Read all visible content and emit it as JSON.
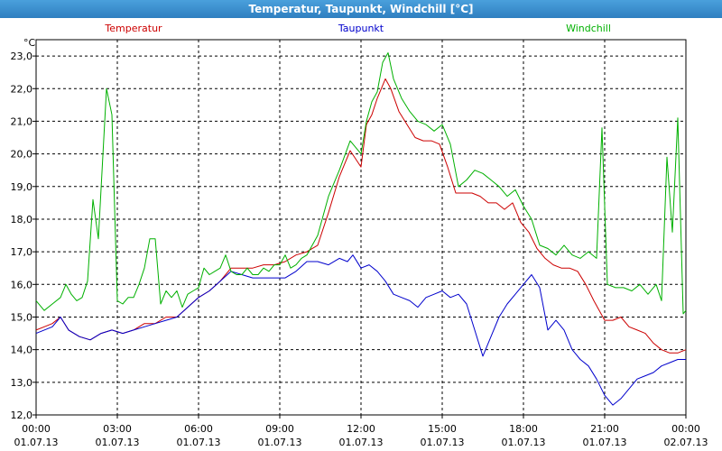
{
  "title": "Temperatur, Taupunkt, Windchill [°C]",
  "chart_data": {
    "type": "line",
    "title": "Temperatur, Taupunkt, Windchill [°C]",
    "y_unit": "°C",
    "ylim": [
      12.0,
      23.5
    ],
    "y_ticks": [
      "12,0",
      "13,0",
      "14,0",
      "15,0",
      "16,0",
      "17,0",
      "18,0",
      "19,0",
      "20,0",
      "21,0",
      "22,0",
      "23,0"
    ],
    "xlim": [
      0,
      24
    ],
    "x_ticks": [
      {
        "time": "00:00",
        "date": "01.07.13"
      },
      {
        "time": "03:00",
        "date": "01.07.13"
      },
      {
        "time": "06:00",
        "date": "01.07.13"
      },
      {
        "time": "09:00",
        "date": "01.07.13"
      },
      {
        "time": "12:00",
        "date": "01.07.13"
      },
      {
        "time": "15:00",
        "date": "01.07.13"
      },
      {
        "time": "18:00",
        "date": "01.07.13"
      },
      {
        "time": "21:00",
        "date": "01.07.13"
      },
      {
        "time": "00:00",
        "date": "02.07.13"
      }
    ],
    "grid": true,
    "legend_position": "top",
    "series": [
      {
        "name": "Temperatur",
        "color": "#cc0000",
        "points": [
          [
            0,
            14.6
          ],
          [
            0.3,
            14.7
          ],
          [
            0.6,
            14.8
          ],
          [
            0.9,
            15.0
          ],
          [
            1.2,
            14.6
          ],
          [
            1.6,
            14.4
          ],
          [
            2.0,
            14.3
          ],
          [
            2.4,
            14.5
          ],
          [
            2.8,
            14.6
          ],
          [
            3.2,
            14.5
          ],
          [
            3.6,
            14.6
          ],
          [
            4.0,
            14.8
          ],
          [
            4.4,
            14.8
          ],
          [
            4.8,
            15.0
          ],
          [
            5.2,
            15.0
          ],
          [
            5.6,
            15.3
          ],
          [
            6.0,
            15.6
          ],
          [
            6.4,
            15.8
          ],
          [
            6.8,
            16.1
          ],
          [
            7.2,
            16.5
          ],
          [
            7.6,
            16.5
          ],
          [
            8.0,
            16.5
          ],
          [
            8.4,
            16.6
          ],
          [
            8.8,
            16.6
          ],
          [
            9.2,
            16.7
          ],
          [
            9.6,
            16.9
          ],
          [
            10.0,
            17.0
          ],
          [
            10.4,
            17.2
          ],
          [
            10.8,
            18.2
          ],
          [
            11.2,
            19.3
          ],
          [
            11.6,
            20.1
          ],
          [
            12.0,
            19.6
          ],
          [
            12.2,
            20.9
          ],
          [
            12.4,
            21.2
          ],
          [
            12.6,
            21.7
          ],
          [
            12.9,
            22.3
          ],
          [
            13.1,
            22.0
          ],
          [
            13.4,
            21.3
          ],
          [
            13.7,
            20.9
          ],
          [
            14.0,
            20.5
          ],
          [
            14.3,
            20.4
          ],
          [
            14.6,
            20.4
          ],
          [
            14.9,
            20.3
          ],
          [
            15.2,
            19.6
          ],
          [
            15.5,
            18.8
          ],
          [
            15.8,
            18.8
          ],
          [
            16.1,
            18.8
          ],
          [
            16.4,
            18.7
          ],
          [
            16.7,
            18.5
          ],
          [
            17.0,
            18.5
          ],
          [
            17.3,
            18.3
          ],
          [
            17.6,
            18.5
          ],
          [
            17.9,
            17.9
          ],
          [
            18.2,
            17.6
          ],
          [
            18.5,
            17.1
          ],
          [
            18.8,
            16.8
          ],
          [
            19.1,
            16.6
          ],
          [
            19.4,
            16.5
          ],
          [
            19.7,
            16.5
          ],
          [
            20.0,
            16.4
          ],
          [
            20.3,
            16.0
          ],
          [
            20.6,
            15.5
          ],
          [
            21.0,
            14.9
          ],
          [
            21.3,
            14.9
          ],
          [
            21.6,
            15.0
          ],
          [
            21.9,
            14.7
          ],
          [
            22.2,
            14.6
          ],
          [
            22.5,
            14.5
          ],
          [
            22.8,
            14.2
          ],
          [
            23.1,
            14.0
          ],
          [
            23.4,
            13.9
          ],
          [
            23.7,
            13.9
          ],
          [
            24.0,
            14.0
          ]
        ]
      },
      {
        "name": "Taupunkt",
        "color": "#0000cc",
        "points": [
          [
            0,
            14.5
          ],
          [
            0.3,
            14.6
          ],
          [
            0.6,
            14.7
          ],
          [
            0.9,
            15.0
          ],
          [
            1.2,
            14.6
          ],
          [
            1.6,
            14.4
          ],
          [
            2.0,
            14.3
          ],
          [
            2.4,
            14.5
          ],
          [
            2.8,
            14.6
          ],
          [
            3.2,
            14.5
          ],
          [
            3.6,
            14.6
          ],
          [
            4.0,
            14.7
          ],
          [
            4.4,
            14.8
          ],
          [
            4.8,
            14.9
          ],
          [
            5.2,
            15.0
          ],
          [
            5.6,
            15.3
          ],
          [
            6.0,
            15.6
          ],
          [
            6.4,
            15.8
          ],
          [
            6.8,
            16.1
          ],
          [
            7.2,
            16.4
          ],
          [
            7.6,
            16.3
          ],
          [
            8.0,
            16.2
          ],
          [
            8.4,
            16.2
          ],
          [
            8.8,
            16.2
          ],
          [
            9.2,
            16.2
          ],
          [
            9.6,
            16.4
          ],
          [
            10.0,
            16.7
          ],
          [
            10.4,
            16.7
          ],
          [
            10.8,
            16.6
          ],
          [
            11.2,
            16.8
          ],
          [
            11.5,
            16.7
          ],
          [
            11.7,
            16.9
          ],
          [
            12.0,
            16.5
          ],
          [
            12.3,
            16.6
          ],
          [
            12.6,
            16.4
          ],
          [
            12.9,
            16.1
          ],
          [
            13.2,
            15.7
          ],
          [
            13.5,
            15.6
          ],
          [
            13.8,
            15.5
          ],
          [
            14.1,
            15.3
          ],
          [
            14.4,
            15.6
          ],
          [
            14.7,
            15.7
          ],
          [
            15.0,
            15.8
          ],
          [
            15.3,
            15.6
          ],
          [
            15.6,
            15.7
          ],
          [
            15.9,
            15.4
          ],
          [
            16.2,
            14.6
          ],
          [
            16.5,
            13.8
          ],
          [
            16.8,
            14.4
          ],
          [
            17.1,
            15.0
          ],
          [
            17.4,
            15.4
          ],
          [
            17.7,
            15.7
          ],
          [
            18.0,
            16.0
          ],
          [
            18.3,
            16.3
          ],
          [
            18.6,
            15.9
          ],
          [
            18.9,
            14.6
          ],
          [
            19.2,
            14.9
          ],
          [
            19.5,
            14.6
          ],
          [
            19.8,
            14.0
          ],
          [
            20.1,
            13.7
          ],
          [
            20.4,
            13.5
          ],
          [
            20.7,
            13.1
          ],
          [
            21.0,
            12.6
          ],
          [
            21.3,
            12.3
          ],
          [
            21.6,
            12.5
          ],
          [
            21.9,
            12.8
          ],
          [
            22.2,
            13.1
          ],
          [
            22.5,
            13.2
          ],
          [
            22.8,
            13.3
          ],
          [
            23.1,
            13.5
          ],
          [
            23.4,
            13.6
          ],
          [
            23.7,
            13.7
          ],
          [
            24.0,
            13.7
          ]
        ]
      },
      {
        "name": "Windchill",
        "color": "#00b000",
        "points": [
          [
            0,
            15.5
          ],
          [
            0.3,
            15.2
          ],
          [
            0.6,
            15.4
          ],
          [
            0.9,
            15.6
          ],
          [
            1.1,
            16.0
          ],
          [
            1.3,
            15.7
          ],
          [
            1.5,
            15.5
          ],
          [
            1.7,
            15.6
          ],
          [
            1.9,
            16.1
          ],
          [
            2.1,
            18.6
          ],
          [
            2.3,
            17.4
          ],
          [
            2.6,
            22.0
          ],
          [
            2.8,
            21.2
          ],
          [
            3.0,
            15.5
          ],
          [
            3.2,
            15.4
          ],
          [
            3.4,
            15.6
          ],
          [
            3.6,
            15.6
          ],
          [
            3.8,
            16.0
          ],
          [
            4.0,
            16.5
          ],
          [
            4.2,
            17.4
          ],
          [
            4.4,
            17.4
          ],
          [
            4.6,
            15.4
          ],
          [
            4.8,
            15.8
          ],
          [
            5.0,
            15.6
          ],
          [
            5.2,
            15.8
          ],
          [
            5.4,
            15.3
          ],
          [
            5.6,
            15.7
          ],
          [
            5.8,
            15.8
          ],
          [
            6.0,
            15.9
          ],
          [
            6.2,
            16.5
          ],
          [
            6.4,
            16.3
          ],
          [
            6.6,
            16.4
          ],
          [
            6.8,
            16.5
          ],
          [
            7.0,
            16.9
          ],
          [
            7.2,
            16.4
          ],
          [
            7.4,
            16.3
          ],
          [
            7.6,
            16.3
          ],
          [
            7.8,
            16.5
          ],
          [
            8.0,
            16.3
          ],
          [
            8.2,
            16.3
          ],
          [
            8.4,
            16.5
          ],
          [
            8.6,
            16.4
          ],
          [
            8.8,
            16.6
          ],
          [
            9.0,
            16.6
          ],
          [
            9.2,
            16.9
          ],
          [
            9.4,
            16.5
          ],
          [
            9.6,
            16.6
          ],
          [
            9.8,
            16.8
          ],
          [
            10.0,
            16.9
          ],
          [
            10.4,
            17.5
          ],
          [
            10.8,
            18.7
          ],
          [
            11.2,
            19.5
          ],
          [
            11.6,
            20.4
          ],
          [
            12.0,
            20.0
          ],
          [
            12.2,
            21.0
          ],
          [
            12.4,
            21.6
          ],
          [
            12.6,
            21.9
          ],
          [
            12.8,
            22.8
          ],
          [
            13.0,
            23.1
          ],
          [
            13.2,
            22.3
          ],
          [
            13.5,
            21.7
          ],
          [
            13.8,
            21.3
          ],
          [
            14.1,
            21.0
          ],
          [
            14.4,
            20.9
          ],
          [
            14.7,
            20.7
          ],
          [
            15.0,
            20.9
          ],
          [
            15.3,
            20.3
          ],
          [
            15.6,
            19.0
          ],
          [
            15.9,
            19.2
          ],
          [
            16.2,
            19.5
          ],
          [
            16.5,
            19.4
          ],
          [
            16.8,
            19.2
          ],
          [
            17.1,
            19.0
          ],
          [
            17.4,
            18.7
          ],
          [
            17.7,
            18.9
          ],
          [
            18.0,
            18.4
          ],
          [
            18.3,
            18.0
          ],
          [
            18.6,
            17.2
          ],
          [
            18.9,
            17.1
          ],
          [
            19.2,
            16.9
          ],
          [
            19.5,
            17.2
          ],
          [
            19.8,
            16.9
          ],
          [
            20.1,
            16.8
          ],
          [
            20.4,
            17.0
          ],
          [
            20.7,
            16.8
          ],
          [
            20.9,
            20.8
          ],
          [
            21.1,
            16.0
          ],
          [
            21.4,
            15.9
          ],
          [
            21.7,
            15.9
          ],
          [
            22.0,
            15.8
          ],
          [
            22.3,
            16.0
          ],
          [
            22.6,
            15.7
          ],
          [
            22.9,
            16.0
          ],
          [
            23.1,
            15.5
          ],
          [
            23.3,
            19.9
          ],
          [
            23.5,
            17.6
          ],
          [
            23.7,
            21.1
          ],
          [
            23.9,
            15.1
          ],
          [
            24.0,
            15.2
          ]
        ]
      }
    ]
  }
}
